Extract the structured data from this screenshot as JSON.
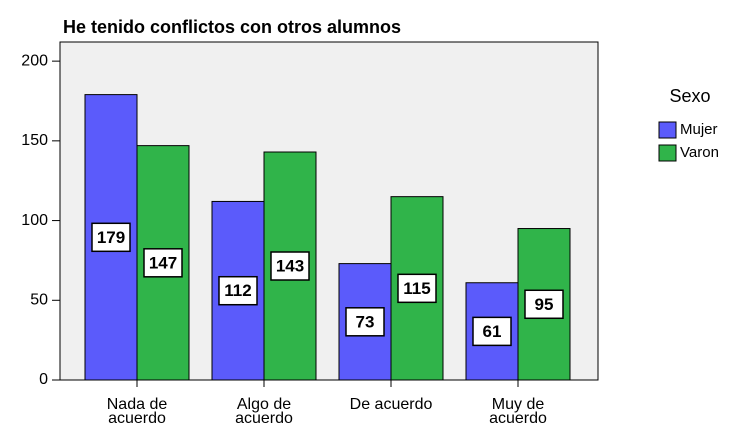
{
  "chart_data": {
    "type": "bar",
    "title": "He tenido conflictos con otros alumnos",
    "categories": [
      "Nada de acuerdo",
      "Algo de acuerdo",
      "De acuerdo",
      "Muy de acuerdo"
    ],
    "legend_title": "Sexo",
    "series": [
      {
        "name": "Mujer",
        "color": "#5b5bfb",
        "values": [
          179,
          112,
          73,
          61
        ]
      },
      {
        "name": "Varon",
        "color": "#30b44a",
        "values": [
          147,
          143,
          115,
          95
        ]
      }
    ],
    "ylim": [
      0,
      212
    ],
    "yticks": [
      0,
      50,
      100,
      150,
      200
    ],
    "legend": "right"
  }
}
